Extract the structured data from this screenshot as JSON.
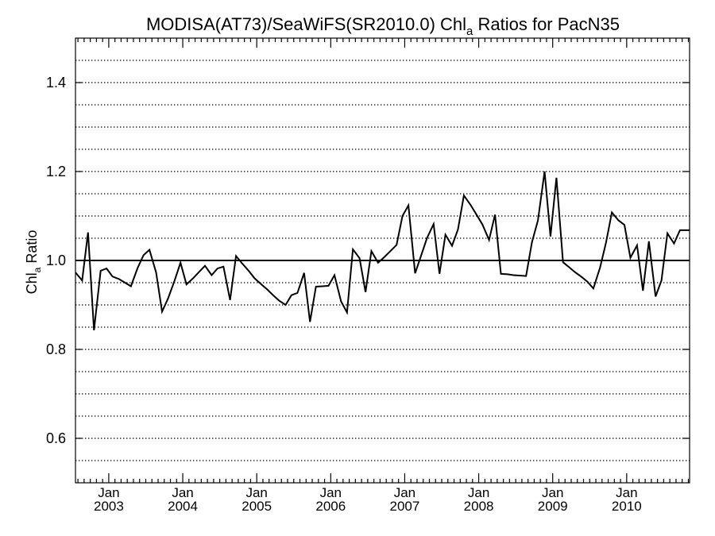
{
  "chart_data": {
    "type": "line",
    "title": {
      "main": "MODISA(AT73)/SeaWiFS(SR2010.0)  Chl",
      "subscript": "a",
      "suffix": " Ratios for PacN35"
    },
    "ylabel": {
      "main": "Chl",
      "subscript": "a",
      "suffix": " Ratio"
    },
    "xlabel": "",
    "ylim": [
      0.5,
      1.5
    ],
    "xlim": [
      2002.55,
      2010.85
    ],
    "yticks": [
      {
        "value": 0.6,
        "label": "0.6"
      },
      {
        "value": 0.8,
        "label": "0.8"
      },
      {
        "value": 1.0,
        "label": "1.0"
      },
      {
        "value": 1.2,
        "label": "1.2"
      },
      {
        "value": 1.4,
        "label": "1.4"
      }
    ],
    "xticks": [
      {
        "value": 2003,
        "month": "Jan",
        "year": "2003"
      },
      {
        "value": 2004,
        "month": "Jan",
        "year": "2004"
      },
      {
        "value": 2005,
        "month": "Jan",
        "year": "2005"
      },
      {
        "value": 2006,
        "month": "Jan",
        "year": "2006"
      },
      {
        "value": 2007,
        "month": "Jan",
        "year": "2007"
      },
      {
        "value": 2008,
        "month": "Jan",
        "year": "2008"
      },
      {
        "value": 2009,
        "month": "Jan",
        "year": "2009"
      },
      {
        "value": 2010,
        "month": "Jan",
        "year": "2010"
      }
    ],
    "grid": "horizontal dotted lines every 0.05",
    "reference_line": 1.0,
    "series": [
      {
        "color": "#000000",
        "x": [
          2002.55,
          2002.64,
          2002.72,
          2002.8,
          2002.89,
          2002.97,
          2003.05,
          2003.14,
          2003.22,
          2003.3,
          2003.39,
          2003.47,
          2003.55,
          2003.64,
          2003.72,
          2003.8,
          2003.89,
          2003.97,
          2004.05,
          2004.14,
          2004.22,
          2004.3,
          2004.39,
          2004.47,
          2004.55,
          2004.64,
          2004.72,
          2004.8,
          2004.89,
          2004.97,
          2005.05,
          2005.14,
          2005.22,
          2005.3,
          2005.39,
          2005.47,
          2005.55,
          2005.64,
          2005.72,
          2005.8,
          2005.89,
          2005.97,
          2006.05,
          2006.14,
          2006.22,
          2006.3,
          2006.39,
          2006.47,
          2006.55,
          2006.64,
          2006.72,
          2006.8,
          2006.89,
          2006.97,
          2007.05,
          2007.14,
          2007.22,
          2007.3,
          2007.39,
          2007.47,
          2007.55,
          2007.64,
          2007.72,
          2007.8,
          2007.89,
          2007.97,
          2008.05,
          2008.14,
          2008.22,
          2008.3,
          2008.39,
          2008.47,
          2008.55,
          2008.64,
          2008.72,
          2008.8,
          2008.89,
          2008.97,
          2009.05,
          2009.14,
          2009.22,
          2009.3,
          2009.39,
          2009.47,
          2009.55,
          2009.64,
          2009.72,
          2009.8,
          2009.89,
          2009.97,
          2010.05,
          2010.14,
          2010.22,
          2010.3,
          2010.39,
          2010.47,
          2010.55,
          2010.64,
          2010.72,
          2010.8,
          2010.85
        ],
        "y": [
          0.973,
          0.955,
          1.063,
          0.843,
          0.977,
          0.982,
          0.964,
          0.958,
          0.95,
          0.942,
          0.983,
          1.012,
          1.024,
          0.973,
          0.885,
          0.914,
          0.955,
          0.995,
          0.946,
          0.96,
          0.974,
          0.988,
          0.967,
          0.982,
          0.986,
          0.911,
          1.01,
          0.994,
          0.977,
          0.96,
          0.948,
          0.935,
          0.922,
          0.91,
          0.9,
          0.922,
          0.927,
          0.972,
          0.862,
          0.941,
          0.942,
          0.943,
          0.967,
          0.908,
          0.883,
          1.025,
          1.005,
          0.929,
          1.021,
          0.995,
          1.007,
          1.02,
          1.035,
          1.1,
          1.124,
          0.971,
          1.01,
          1.05,
          1.082,
          0.97,
          1.058,
          1.033,
          1.07,
          1.146,
          1.125,
          1.103,
          1.081,
          1.046,
          1.103,
          0.97,
          0.969,
          0.967,
          0.966,
          0.965,
          1.041,
          1.09,
          1.2,
          1.054,
          1.186,
          0.996,
          0.985,
          0.974,
          0.963,
          0.952,
          0.937,
          0.984,
          1.04,
          1.108,
          1.09,
          1.08,
          1.006,
          1.034,
          0.932,
          1.043,
          0.919,
          0.955,
          1.061,
          1.038,
          1.068,
          1.068,
          1.068
        ]
      }
    ]
  }
}
